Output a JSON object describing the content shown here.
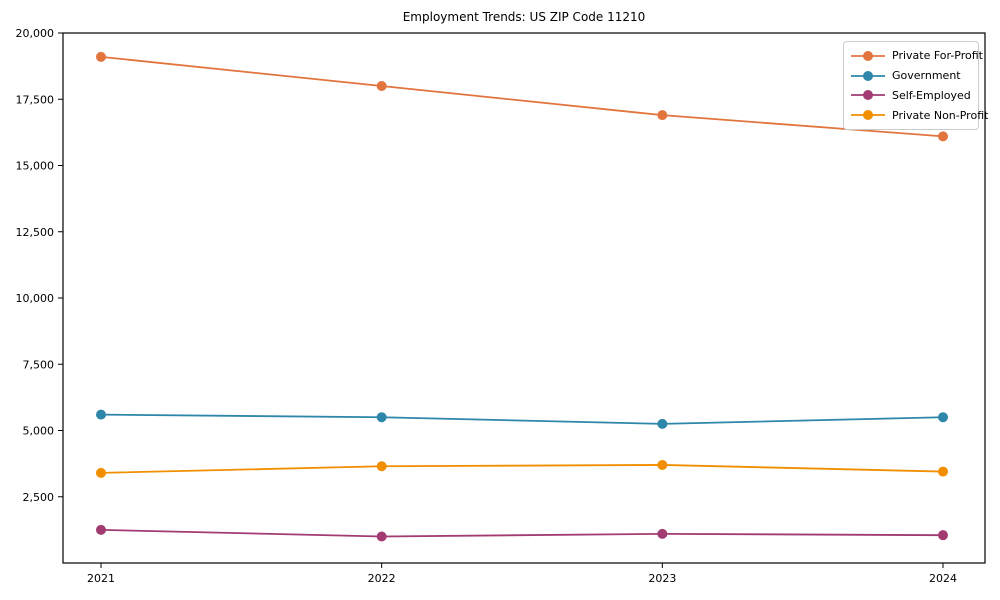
{
  "chart_data": {
    "type": "line",
    "title": "Employment Trends: US ZIP Code 11210",
    "xlabel": "",
    "ylabel": "",
    "categories": [
      "2021",
      "2022",
      "2023",
      "2024"
    ],
    "series": [
      {
        "name": "Private For-Profit",
        "color": "#E2743E",
        "values": [
          19100,
          18000,
          16900,
          16100
        ]
      },
      {
        "name": "Government",
        "color": "#2E86AB",
        "values": [
          5600,
          5500,
          5250,
          5500
        ]
      },
      {
        "name": "Self-Employed",
        "color": "#A23B72",
        "values": [
          1250,
          1000,
          1100,
          1050
        ]
      },
      {
        "name": "Private Non-Profit",
        "color": "#F18F01",
        "values": [
          3400,
          3650,
          3700,
          3450
        ]
      }
    ],
    "yticks": [
      2500,
      5000,
      7500,
      10000,
      12500,
      15000,
      17500,
      20000
    ],
    "ylim": [
      0,
      20000
    ],
    "grid": false,
    "legend_position": "upper right",
    "marker": "circle",
    "axis_color": "#000000"
  }
}
